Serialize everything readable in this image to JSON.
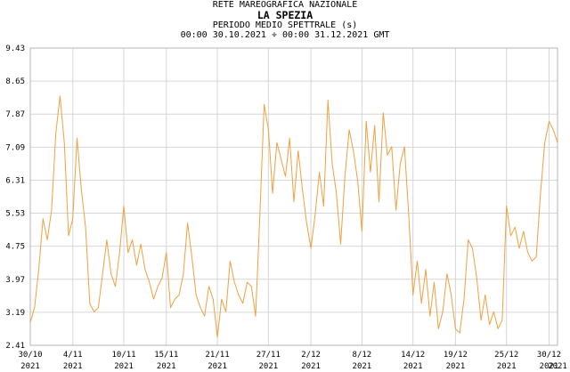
{
  "header": {
    "network": "RETE MAREOGRAFICA NAZIONALE",
    "station": "LA SPEZIA",
    "parameter": "PERIODO MEDIO SPETTRALE (s)",
    "period": "00:00 30.10.2021 ÷ 00:00 31.12.2021 GMT"
  },
  "chart_data": {
    "type": "line",
    "title": "LA SPEZIA",
    "subtitle": "PERIODO MEDIO SPETTRALE (s)",
    "xlabel": "",
    "ylabel": "",
    "ylim": [
      2.41,
      9.43
    ],
    "yticks": [
      "2.41",
      "3.19",
      "3.97",
      "4.75",
      "5.53",
      "6.31",
      "7.09",
      "7.87",
      "8.65",
      "9.43"
    ],
    "x_day_range": [
      0,
      62
    ],
    "xticks": [
      {
        "day": 0,
        "date": "30/10",
        "year": "2021"
      },
      {
        "day": 5,
        "date": "4/11",
        "year": "2021"
      },
      {
        "day": 11,
        "date": "10/11",
        "year": "2021"
      },
      {
        "day": 16,
        "date": "15/11",
        "year": "2021"
      },
      {
        "day": 22,
        "date": "21/11",
        "year": "2021"
      },
      {
        "day": 28,
        "date": "27/11",
        "year": "2021"
      },
      {
        "day": 33,
        "date": "2/12",
        "year": "2021"
      },
      {
        "day": 39,
        "date": "8/12",
        "year": "2021"
      },
      {
        "day": 45,
        "date": "14/12",
        "year": "2021"
      },
      {
        "day": 50,
        "date": "19/12",
        "year": "2021"
      },
      {
        "day": 56,
        "date": "25/12",
        "year": "2021"
      },
      {
        "day": 61,
        "date": "30/12",
        "year": "2021"
      },
      {
        "day": 62,
        "date": "",
        "year": "2021"
      }
    ],
    "grid": true,
    "line_color": "#f0a040",
    "series": [
      {
        "x": [
          0,
          0.5,
          1,
          1.5,
          2,
          2.5,
          3,
          3.5,
          4,
          4.5,
          5,
          5.5,
          6,
          6.5,
          7,
          7.5,
          8,
          8.5,
          9,
          9.5,
          10,
          10.5,
          11,
          11.5,
          12,
          12.5,
          13,
          13.5,
          14,
          14.5,
          15,
          15.5,
          16,
          16.5,
          17,
          17.5,
          18,
          18.5,
          19,
          19.5,
          20,
          20.5,
          21,
          21.5,
          22,
          22.5,
          23,
          23.5,
          24,
          24.5,
          25,
          25.5,
          26,
          26.5,
          27,
          27.5,
          28,
          28.5,
          29,
          29.5,
          30,
          30.5,
          31,
          31.5,
          32,
          32.5,
          33,
          33.5,
          34,
          34.5,
          35,
          35.5,
          36,
          36.5,
          37,
          37.5,
          38,
          38.5,
          39,
          39.5,
          40,
          40.5,
          41,
          41.5,
          42,
          42.5,
          43,
          43.5,
          44,
          44.5,
          45,
          45.5,
          46,
          46.5,
          47,
          47.5,
          48,
          48.5,
          49,
          49.5,
          50,
          50.5,
          51,
          51.5,
          52,
          52.5,
          53,
          53.5,
          54,
          54.5,
          55,
          55.5,
          56,
          56.5,
          57,
          57.5,
          58,
          58.5,
          59,
          59.5,
          60,
          60.5,
          61,
          61.5,
          62
        ],
        "values": [
          2.95,
          3.3,
          4.2,
          5.4,
          4.9,
          5.6,
          7.4,
          8.3,
          7.2,
          5.0,
          5.4,
          7.3,
          6.1,
          5.2,
          3.4,
          3.2,
          3.3,
          4.1,
          4.9,
          4.1,
          3.8,
          4.6,
          5.7,
          4.6,
          4.9,
          4.3,
          4.8,
          4.2,
          3.9,
          3.5,
          3.8,
          4.0,
          4.6,
          3.3,
          3.5,
          3.6,
          4.1,
          5.3,
          4.5,
          3.6,
          3.3,
          3.1,
          3.8,
          3.5,
          2.6,
          3.5,
          3.2,
          4.4,
          3.9,
          3.6,
          3.4,
          3.9,
          3.8,
          3.1,
          5.5,
          8.1,
          7.5,
          6.0,
          7.2,
          6.8,
          6.4,
          7.3,
          5.8,
          7.0,
          6.1,
          5.3,
          4.7,
          5.5,
          6.5,
          5.7,
          8.2,
          6.7,
          6.0,
          4.8,
          6.4,
          7.5,
          7.0,
          6.3,
          5.1,
          7.7,
          6.5,
          7.6,
          5.8,
          7.9,
          6.9,
          7.1,
          5.6,
          6.7,
          7.1,
          5.5,
          3.6,
          4.4,
          3.4,
          4.2,
          3.1,
          3.9,
          2.8,
          3.2,
          4.1,
          3.6,
          2.8,
          2.7,
          3.5,
          4.9,
          4.7,
          4.0,
          3.0,
          3.6,
          2.9,
          3.2,
          2.8,
          3.0,
          5.7,
          5.0,
          5.2,
          4.7,
          5.1,
          4.6,
          4.4,
          4.5,
          6.0,
          7.2,
          7.7,
          7.5,
          7.2
        ]
      }
    ]
  }
}
